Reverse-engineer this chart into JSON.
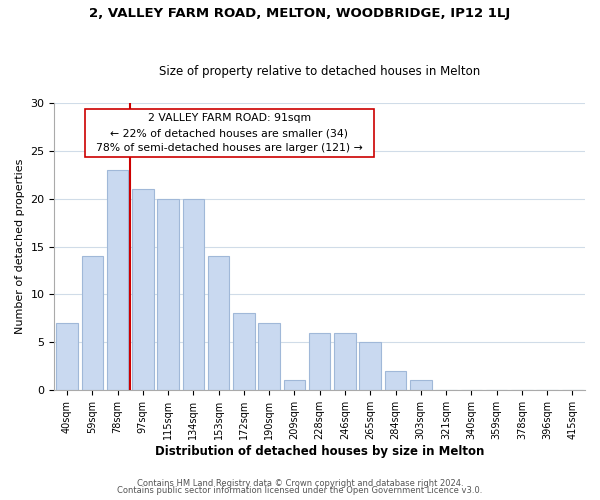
{
  "title1": "2, VALLEY FARM ROAD, MELTON, WOODBRIDGE, IP12 1LJ",
  "title2": "Size of property relative to detached houses in Melton",
  "xlabel": "Distribution of detached houses by size in Melton",
  "ylabel": "Number of detached properties",
  "bar_labels": [
    "40sqm",
    "59sqm",
    "78sqm",
    "97sqm",
    "115sqm",
    "134sqm",
    "153sqm",
    "172sqm",
    "190sqm",
    "209sqm",
    "228sqm",
    "246sqm",
    "265sqm",
    "284sqm",
    "303sqm",
    "321sqm",
    "340sqm",
    "359sqm",
    "378sqm",
    "396sqm",
    "415sqm"
  ],
  "bar_values": [
    7,
    14,
    23,
    21,
    20,
    20,
    14,
    8,
    7,
    1,
    6,
    6,
    5,
    2,
    1,
    0,
    0,
    0,
    0,
    0,
    0
  ],
  "bar_color": "#c9d9f0",
  "bar_edge_color": "#a0b8d8",
  "vline_color": "#cc0000",
  "vline_position": 2.5,
  "annotation_title": "2 VALLEY FARM ROAD: 91sqm",
  "annotation_line1": "← 22% of detached houses are smaller (34)",
  "annotation_line2": "78% of semi-detached houses are larger (121) →",
  "annotation_box_color": "#ffffff",
  "annotation_box_edge": "#cc0000",
  "ylim": [
    0,
    30
  ],
  "yticks": [
    0,
    5,
    10,
    15,
    20,
    25,
    30
  ],
  "footer1": "Contains HM Land Registry data © Crown copyright and database right 2024.",
  "footer2": "Contains public sector information licensed under the Open Government Licence v3.0.",
  "bg_color": "#ffffff",
  "grid_color": "#d0dce8"
}
